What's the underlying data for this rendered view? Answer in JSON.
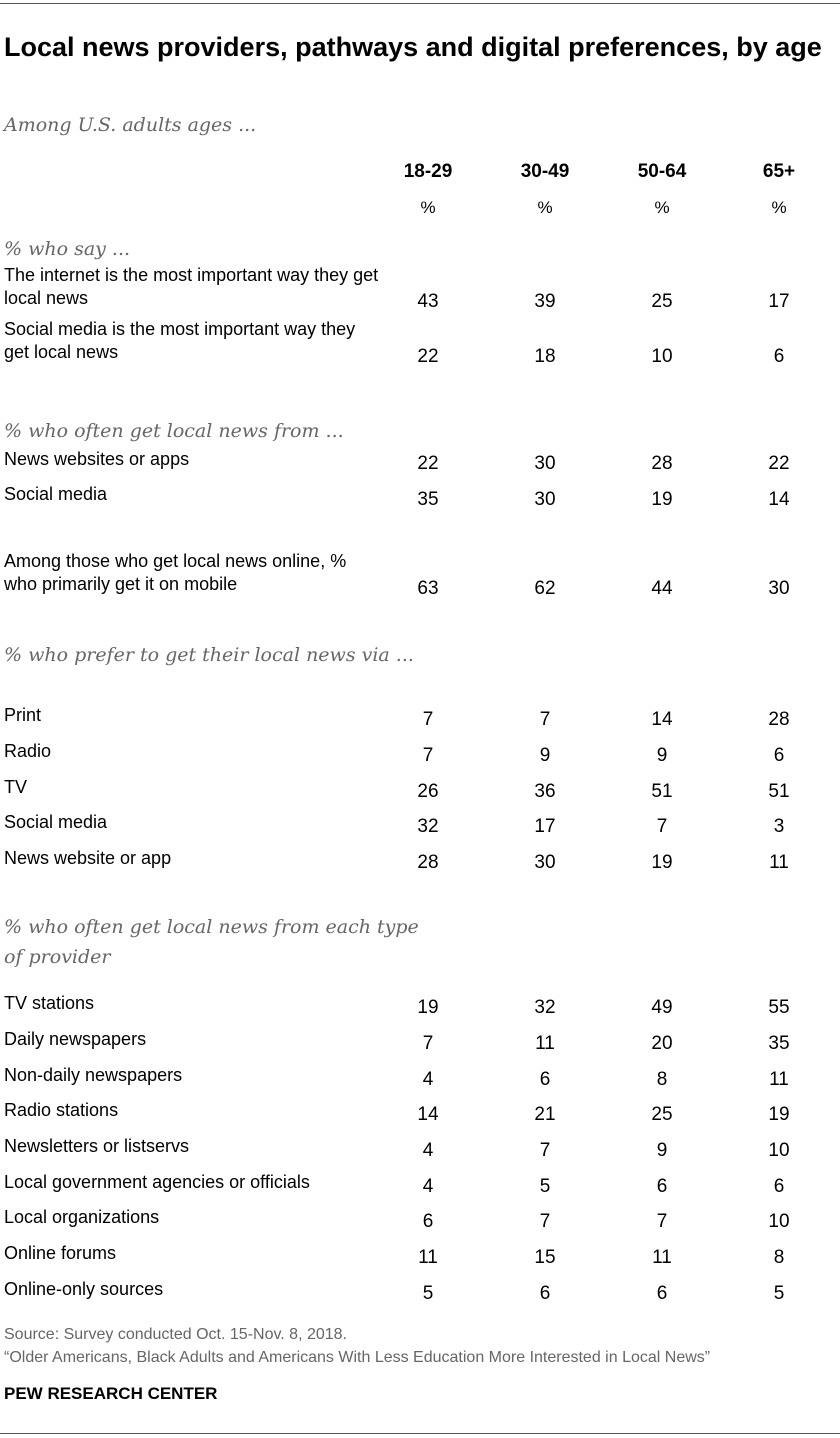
{
  "title": "Local news providers, pathways and digital preferences, by age",
  "subtitle": "Among U.S. adults ages ...",
  "columns": [
    "18-29",
    "30-49",
    "50-64",
    "65+"
  ],
  "unit": "%",
  "source_line1": "Source: Survey conducted Oct. 15-Nov. 8, 2018.",
  "source_line2": "“Older Americans, Black Adults and Americans With Less Education More Interested in Local News”",
  "brand": "PEW RESEARCH CENTER",
  "chart_data": {
    "type": "table",
    "columns": [
      "18-29",
      "30-49",
      "50-64",
      "65+"
    ],
    "unit": "%",
    "sections": [
      {
        "heading": "% who say ...",
        "rows": [
          {
            "label": "The internet is the most important way they get local news",
            "values": [
              43,
              39,
              25,
              17
            ]
          },
          {
            "label": "Social media is the most important way they get local news",
            "values": [
              22,
              18,
              10,
              6
            ]
          }
        ]
      },
      {
        "heading": "% who often get local news from ...",
        "rows": [
          {
            "label": "News websites or apps",
            "values": [
              22,
              30,
              28,
              22
            ]
          },
          {
            "label": "Social media",
            "values": [
              35,
              30,
              19,
              14
            ]
          }
        ]
      },
      {
        "heading": "",
        "rows": [
          {
            "label": "Among those who get local news online, % who primarily get it on mobile",
            "values": [
              63,
              62,
              44,
              30
            ]
          }
        ]
      },
      {
        "heading": "% who prefer to get their local news via ...",
        "rows": [
          {
            "label": "Print",
            "values": [
              7,
              7,
              14,
              28
            ]
          },
          {
            "label": "Radio",
            "values": [
              7,
              9,
              9,
              6
            ]
          },
          {
            "label": "TV",
            "values": [
              26,
              36,
              51,
              51
            ]
          },
          {
            "label": "Social media",
            "values": [
              32,
              17,
              7,
              3
            ]
          },
          {
            "label": "News website or app",
            "values": [
              28,
              30,
              19,
              11
            ]
          }
        ]
      },
      {
        "heading": "% who often get local news from each type of provider",
        "rows": [
          {
            "label": "TV stations",
            "values": [
              19,
              32,
              49,
              55
            ]
          },
          {
            "label": "Daily newspapers",
            "values": [
              7,
              11,
              20,
              35
            ]
          },
          {
            "label": "Non-daily newspapers",
            "values": [
              4,
              6,
              8,
              11
            ]
          },
          {
            "label": "Radio stations",
            "values": [
              14,
              21,
              25,
              19
            ]
          },
          {
            "label": "Newsletters or listservs",
            "values": [
              4,
              7,
              9,
              10
            ]
          },
          {
            "label": "Local government agencies or officials",
            "values": [
              4,
              5,
              6,
              6
            ]
          },
          {
            "label": "Local organizations",
            "values": [
              6,
              7,
              7,
              10
            ]
          },
          {
            "label": "Online forums",
            "values": [
              11,
              15,
              11,
              8
            ]
          },
          {
            "label": "Online-only sources",
            "values": [
              5,
              6,
              6,
              5
            ]
          }
        ]
      }
    ]
  }
}
